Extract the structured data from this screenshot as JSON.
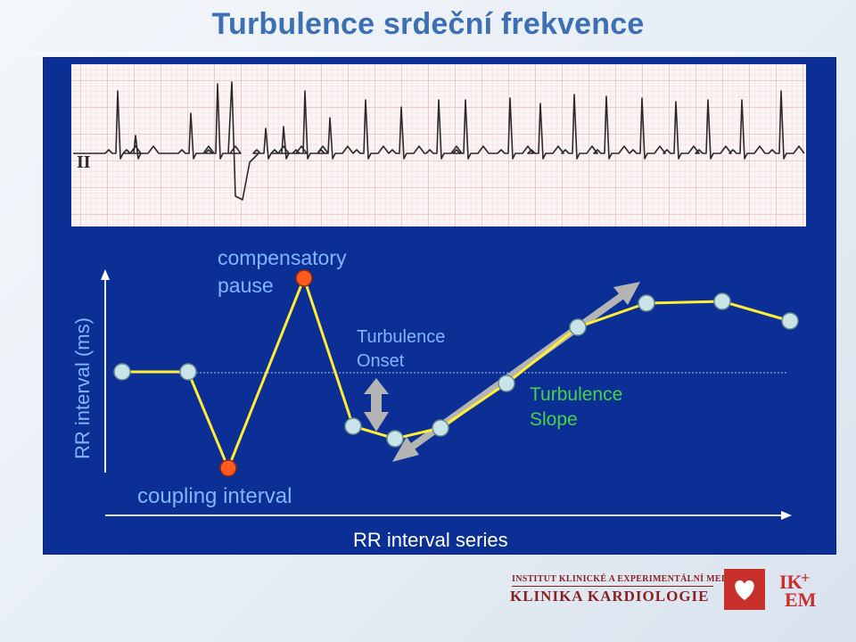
{
  "title": "Turbulence srdeční frekvence",
  "ecg": {
    "lead_label": "II"
  },
  "labels": {
    "y_axis": "RR interval (ms)",
    "x_axis": "RR interval series",
    "compensatory_pause": [
      "compensatory",
      "pause"
    ],
    "coupling_interval": "coupling interval",
    "turbulence_onset": [
      "Turbulence",
      "Onset"
    ],
    "turbulence_slope": [
      "Turbulence",
      "Slope"
    ]
  },
  "diagram": {
    "line_color": "#ffee33",
    "normal_point_color": "#c8e4e8",
    "ectopic_point_color": "#ff5a1f",
    "arrow_color": "#b4b4b4",
    "slope_label_color": "#46d24a",
    "label_color": "#7fb6ff"
  },
  "footer": {
    "institute": "INSTITUT KLINICKÉ A EXPERIMENTÁLNÍ MEDICÍNY",
    "department": "KLINIKA KARDIOLOGIE",
    "logo_top": "IK",
    "logo_plus": "+",
    "logo_bottom": "EM",
    "heart_icon": "heart-icon"
  }
}
